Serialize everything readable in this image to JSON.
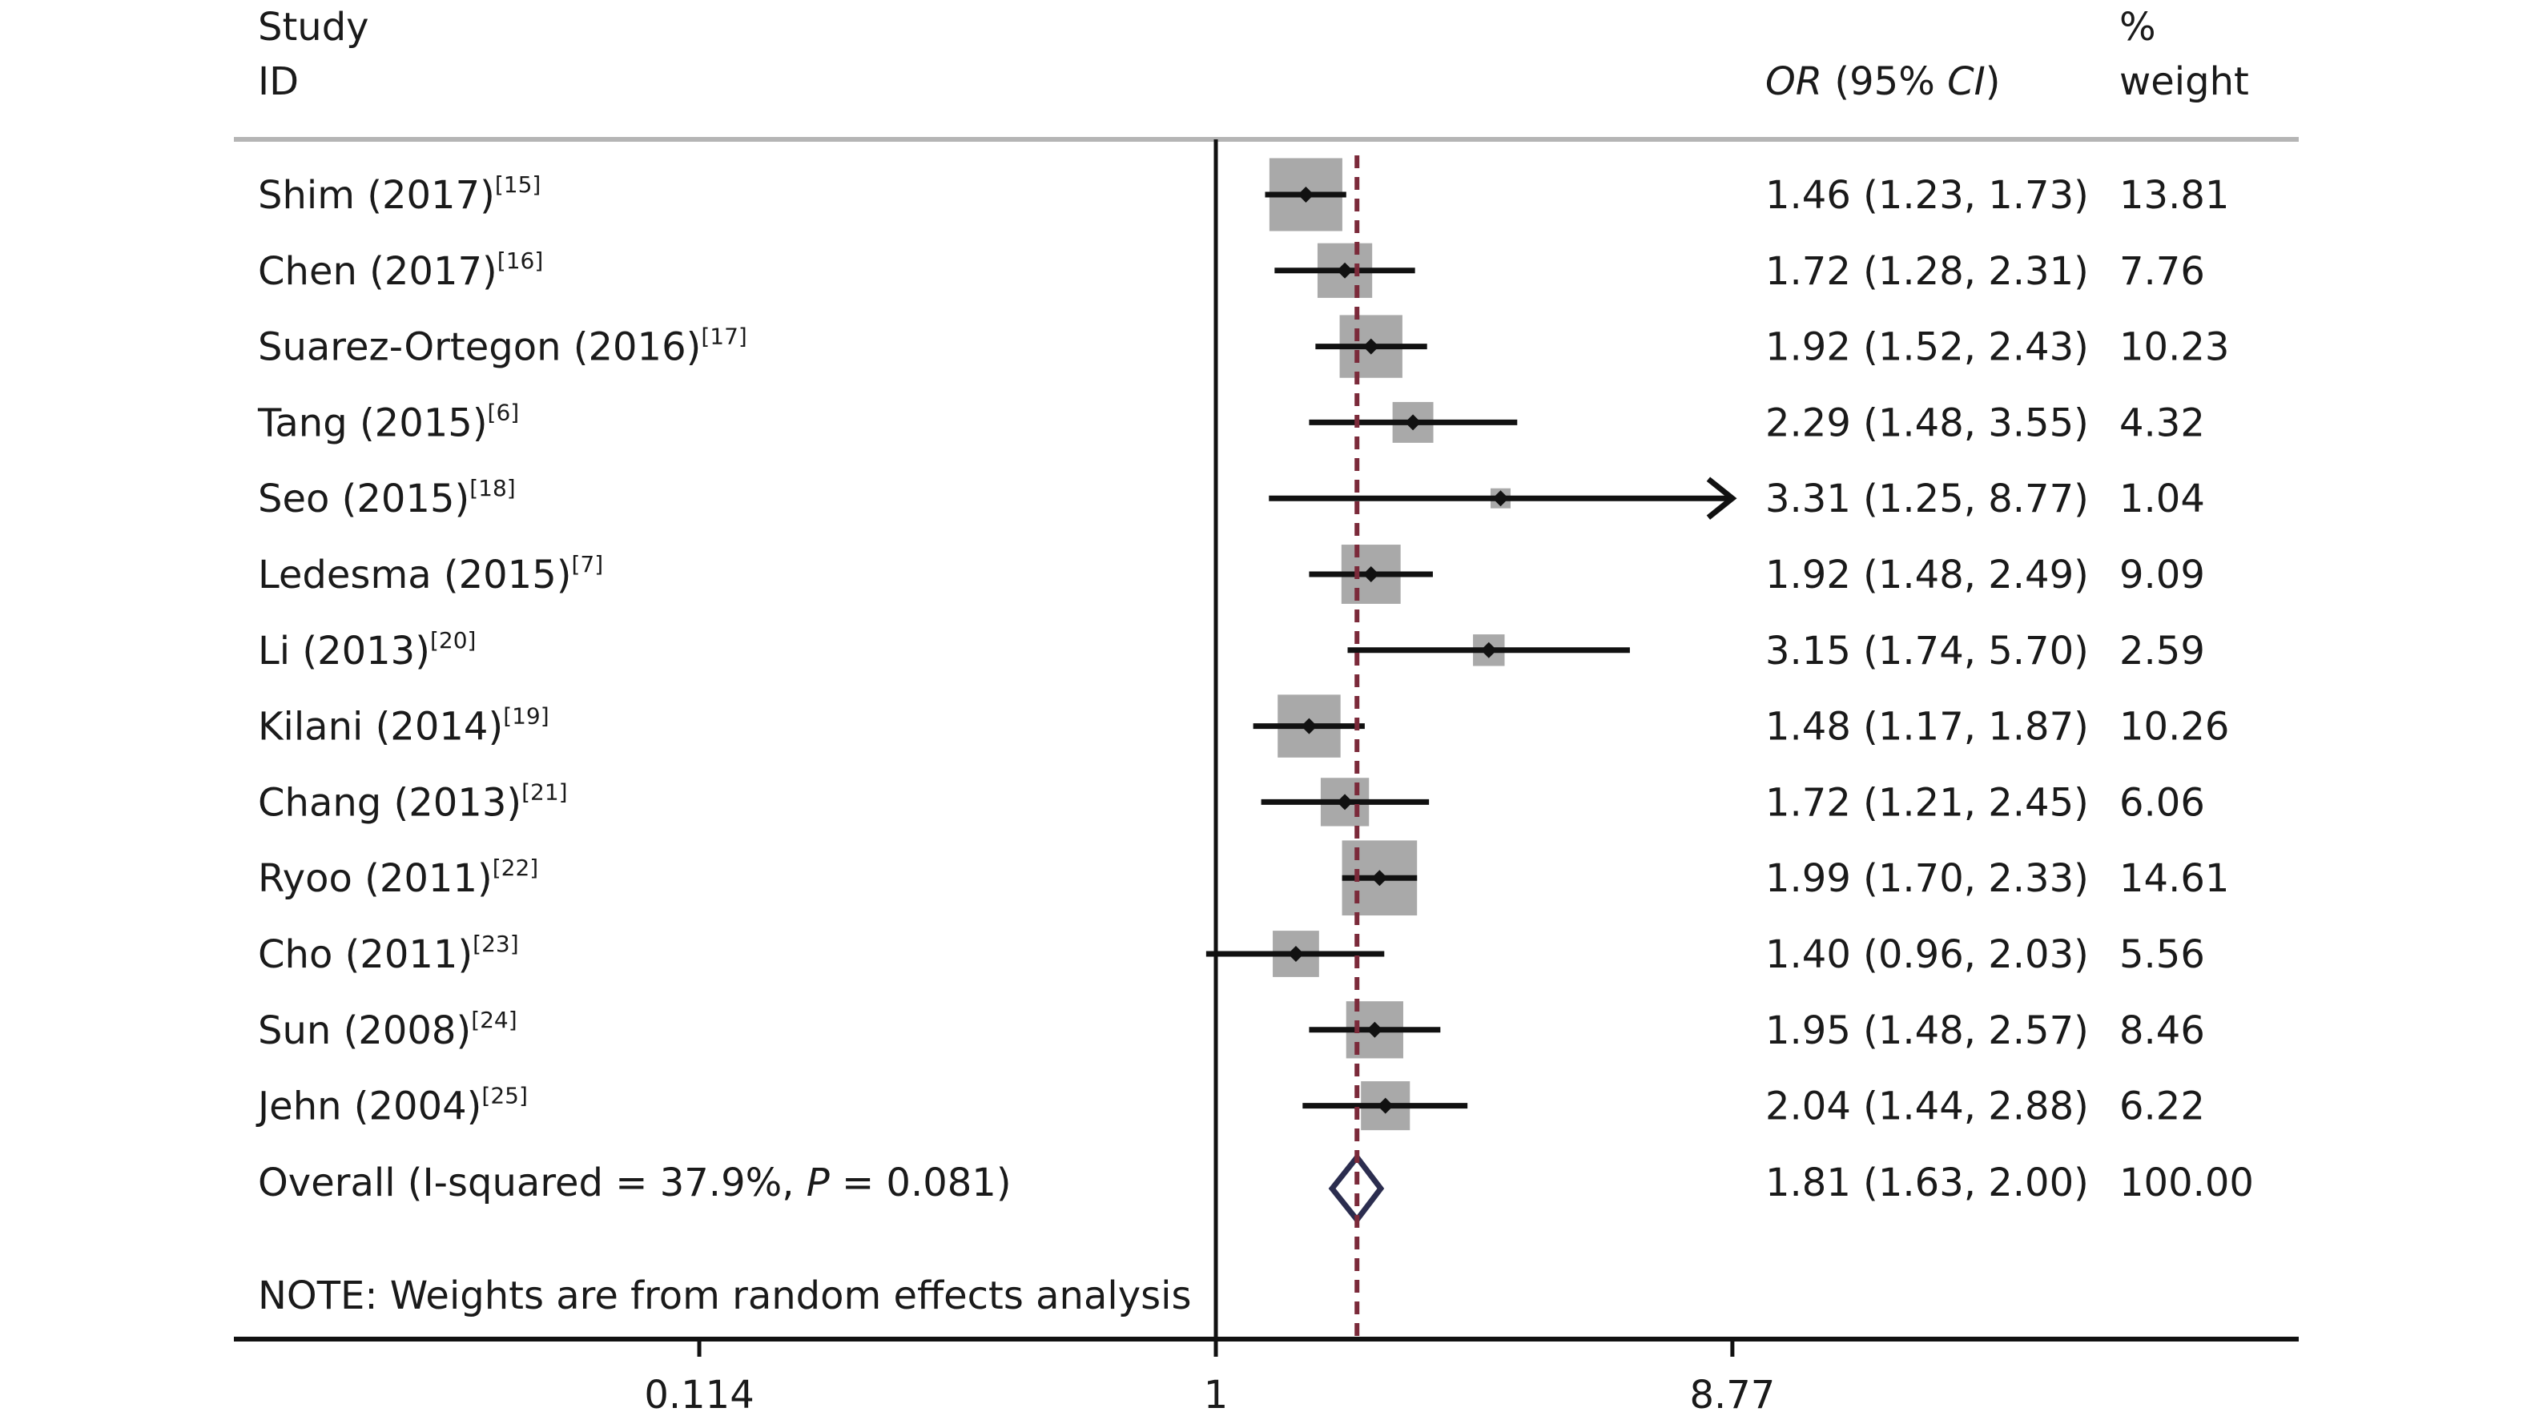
{
  "header": {
    "study_line1": "Study",
    "study_line2": "ID",
    "or_italic1": "OR",
    "or_mid": " (95% ",
    "or_italic2": "CI",
    "or_end": ")",
    "weight_line1": "%",
    "weight_line2": "weight"
  },
  "note": "NOTE: Weights are from random effects analysis",
  "overall": {
    "label_pre": "Overall (I-squared = 37.9%, ",
    "label_p": "P",
    "label_post": " = 0.081)",
    "or": 1.81,
    "lo": 1.63,
    "hi": 2.0,
    "ci_text": "1.81 (1.63, 2.00)",
    "weight_text": "100.00"
  },
  "colors": {
    "box": "#a9a9a9",
    "point": "#111111",
    "ci": "#111111",
    "dashed_line": "#7b2a3a",
    "diamond": "#2b2d4f",
    "axis": "#111111",
    "rule": "#b5b5b5"
  },
  "chart_data": {
    "type": "forest",
    "x_scale": "log",
    "x_ticks": [
      0.114,
      1,
      8.77
    ],
    "x_tick_labels": [
      "0.114",
      "1",
      "8.77"
    ],
    "reference_line": 1,
    "pooled_line": 1.81,
    "studies": [
      {
        "name": "Shim (2017)",
        "ref": "[15]",
        "or": 1.46,
        "lo": 1.23,
        "hi": 1.73,
        "ci_text": "1.46 (1.23, 1.73)",
        "weight": 13.81,
        "weight_text": "13.81"
      },
      {
        "name": "Chen (2017)",
        "ref": "[16]",
        "or": 1.72,
        "lo": 1.28,
        "hi": 2.31,
        "ci_text": "1.72 (1.28, 2.31)",
        "weight": 7.76,
        "weight_text": "7.76"
      },
      {
        "name": "Suarez-Ortegon (2016)",
        "ref": "[17]",
        "or": 1.92,
        "lo": 1.52,
        "hi": 2.43,
        "ci_text": "1.92 (1.52, 2.43)",
        "weight": 10.23,
        "weight_text": "10.23"
      },
      {
        "name": "Tang (2015)",
        "ref": "[6]",
        "or": 2.29,
        "lo": 1.48,
        "hi": 3.55,
        "ci_text": "2.29 (1.48, 3.55)",
        "weight": 4.32,
        "weight_text": "4.32"
      },
      {
        "name": "Seo (2015)",
        "ref": "[18]",
        "or": 3.31,
        "lo": 1.25,
        "hi": 8.77,
        "ci_text": "3.31 (1.25, 8.77)",
        "weight": 1.04,
        "weight_text": "1.04",
        "arrow": true
      },
      {
        "name": "Ledesma (2015)",
        "ref": "[7]",
        "or": 1.92,
        "lo": 1.48,
        "hi": 2.49,
        "ci_text": "1.92 (1.48, 2.49)",
        "weight": 9.09,
        "weight_text": "9.09"
      },
      {
        "name": "Li (2013)",
        "ref": "[20]",
        "or": 3.15,
        "lo": 1.74,
        "hi": 5.7,
        "ci_text": "3.15 (1.74, 5.70)",
        "weight": 2.59,
        "weight_text": "2.59"
      },
      {
        "name": "Kilani (2014)",
        "ref": "[19]",
        "or": 1.48,
        "lo": 1.17,
        "hi": 1.87,
        "ci_text": "1.48 (1.17, 1.87)",
        "weight": 10.26,
        "weight_text": "10.26"
      },
      {
        "name": "Chang (2013)",
        "ref": "[21]",
        "or": 1.72,
        "lo": 1.21,
        "hi": 2.45,
        "ci_text": "1.72 (1.21, 2.45)",
        "weight": 6.06,
        "weight_text": "6.06"
      },
      {
        "name": "Ryoo (2011)",
        "ref": "[22]",
        "or": 1.99,
        "lo": 1.7,
        "hi": 2.33,
        "ci_text": "1.99 (1.70, 2.33)",
        "weight": 14.61,
        "weight_text": "14.61"
      },
      {
        "name": "Cho (2011)",
        "ref": "[23]",
        "or": 1.4,
        "lo": 0.96,
        "hi": 2.03,
        "ci_text": "1.40 (0.96, 2.03)",
        "weight": 5.56,
        "weight_text": "5.56"
      },
      {
        "name": "Sun (2008)",
        "ref": "[24]",
        "or": 1.95,
        "lo": 1.48,
        "hi": 2.57,
        "ci_text": "1.95 (1.48, 2.57)",
        "weight": 8.46,
        "weight_text": "8.46"
      },
      {
        "name": "Jehn (2004)",
        "ref": "[25]",
        "or": 2.04,
        "lo": 1.44,
        "hi": 2.88,
        "ci_text": "2.04 (1.44, 2.88)",
        "weight": 6.22,
        "weight_text": "6.22"
      }
    ]
  }
}
